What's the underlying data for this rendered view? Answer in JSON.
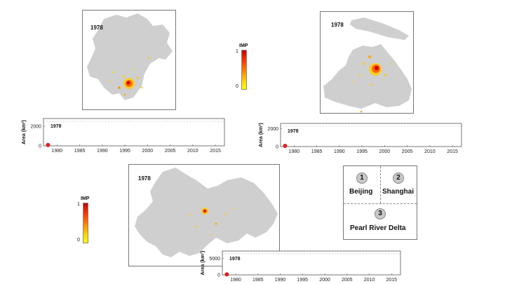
{
  "colors": {
    "land": "#cfcfcf",
    "hotspot_core": "#d40000",
    "hotspot_mid": "#ff6600",
    "hotspot_edge": "#ffcc00",
    "frame": "#777777",
    "start_marker": "#e02020"
  },
  "colorbar": {
    "title": "IMP",
    "max_tick": "1",
    "min_tick": "0"
  },
  "legend": {
    "items": [
      {
        "number": "1",
        "label": "Beijing"
      },
      {
        "number": "2",
        "label": "Shanghai"
      },
      {
        "number": "3",
        "label": "Pearl River Delta"
      }
    ]
  },
  "panels": {
    "beijing": {
      "year": "1978"
    },
    "shanghai": {
      "year": "1978"
    },
    "prd": {
      "year": "1978"
    }
  },
  "chart_data": [
    {
      "type": "line",
      "region": "Beijing",
      "title": "1978",
      "ylabel": "Area (km²)",
      "xlim": [
        1977,
        2017
      ],
      "ylim": [
        0,
        2800
      ],
      "xticks": [
        1980,
        1985,
        1990,
        1995,
        2000,
        2005,
        2010,
        2015
      ],
      "yticks": [
        0,
        2000
      ],
      "series": [
        {
          "x": [
            1978
          ],
          "y": [
            90
          ]
        }
      ],
      "grid": false
    },
    {
      "type": "line",
      "region": "Shanghai",
      "title": "1978",
      "ylabel": "Area (km²)",
      "xlim": [
        1977,
        2017
      ],
      "ylim": [
        0,
        2600
      ],
      "xticks": [
        1980,
        1985,
        1990,
        1995,
        2000,
        2005,
        2010,
        2015
      ],
      "yticks": [
        0,
        2000
      ],
      "series": [
        {
          "x": [
            1978
          ],
          "y": [
            80
          ]
        }
      ],
      "grid": false
    },
    {
      "type": "line",
      "region": "Pearl River Delta",
      "title": "1978",
      "ylabel": "Area (km²)",
      "xlim": [
        1977,
        2017
      ],
      "ylim": [
        0,
        7200
      ],
      "xticks": [
        1980,
        1985,
        1990,
        1995,
        2000,
        2005,
        2010,
        2015
      ],
      "yticks": [
        0,
        5000
      ],
      "series": [
        {
          "x": [
            1978
          ],
          "y": [
            150
          ]
        }
      ],
      "grid": false
    }
  ]
}
